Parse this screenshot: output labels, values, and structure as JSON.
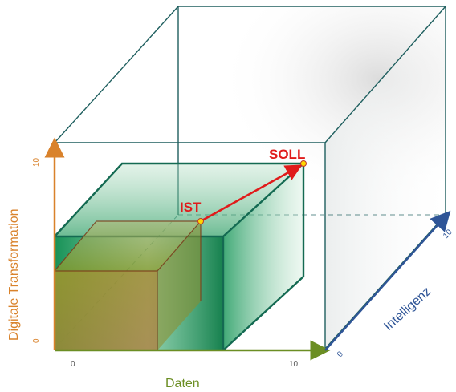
{
  "axes": {
    "x": {
      "label": "Daten",
      "min_tick": "0",
      "max_tick": "10",
      "color": "#6b8e23"
    },
    "y": {
      "label": "Digitale Transformation",
      "min_tick": "0",
      "max_tick": "10",
      "color": "#d9822b"
    },
    "z": {
      "label": "Intelligenz",
      "min_tick": "0",
      "max_tick": "10",
      "color": "#2f5597"
    }
  },
  "points": {
    "ist": {
      "label": "IST"
    },
    "soll": {
      "label": "SOLL"
    }
  },
  "colors": {
    "cube_edge": "#1f5f5f",
    "arrow": "#e01b1b",
    "point_fill": "#ffd700",
    "teal_box": "#1e9e6a",
    "olive_box": "#8a7a1a"
  }
}
